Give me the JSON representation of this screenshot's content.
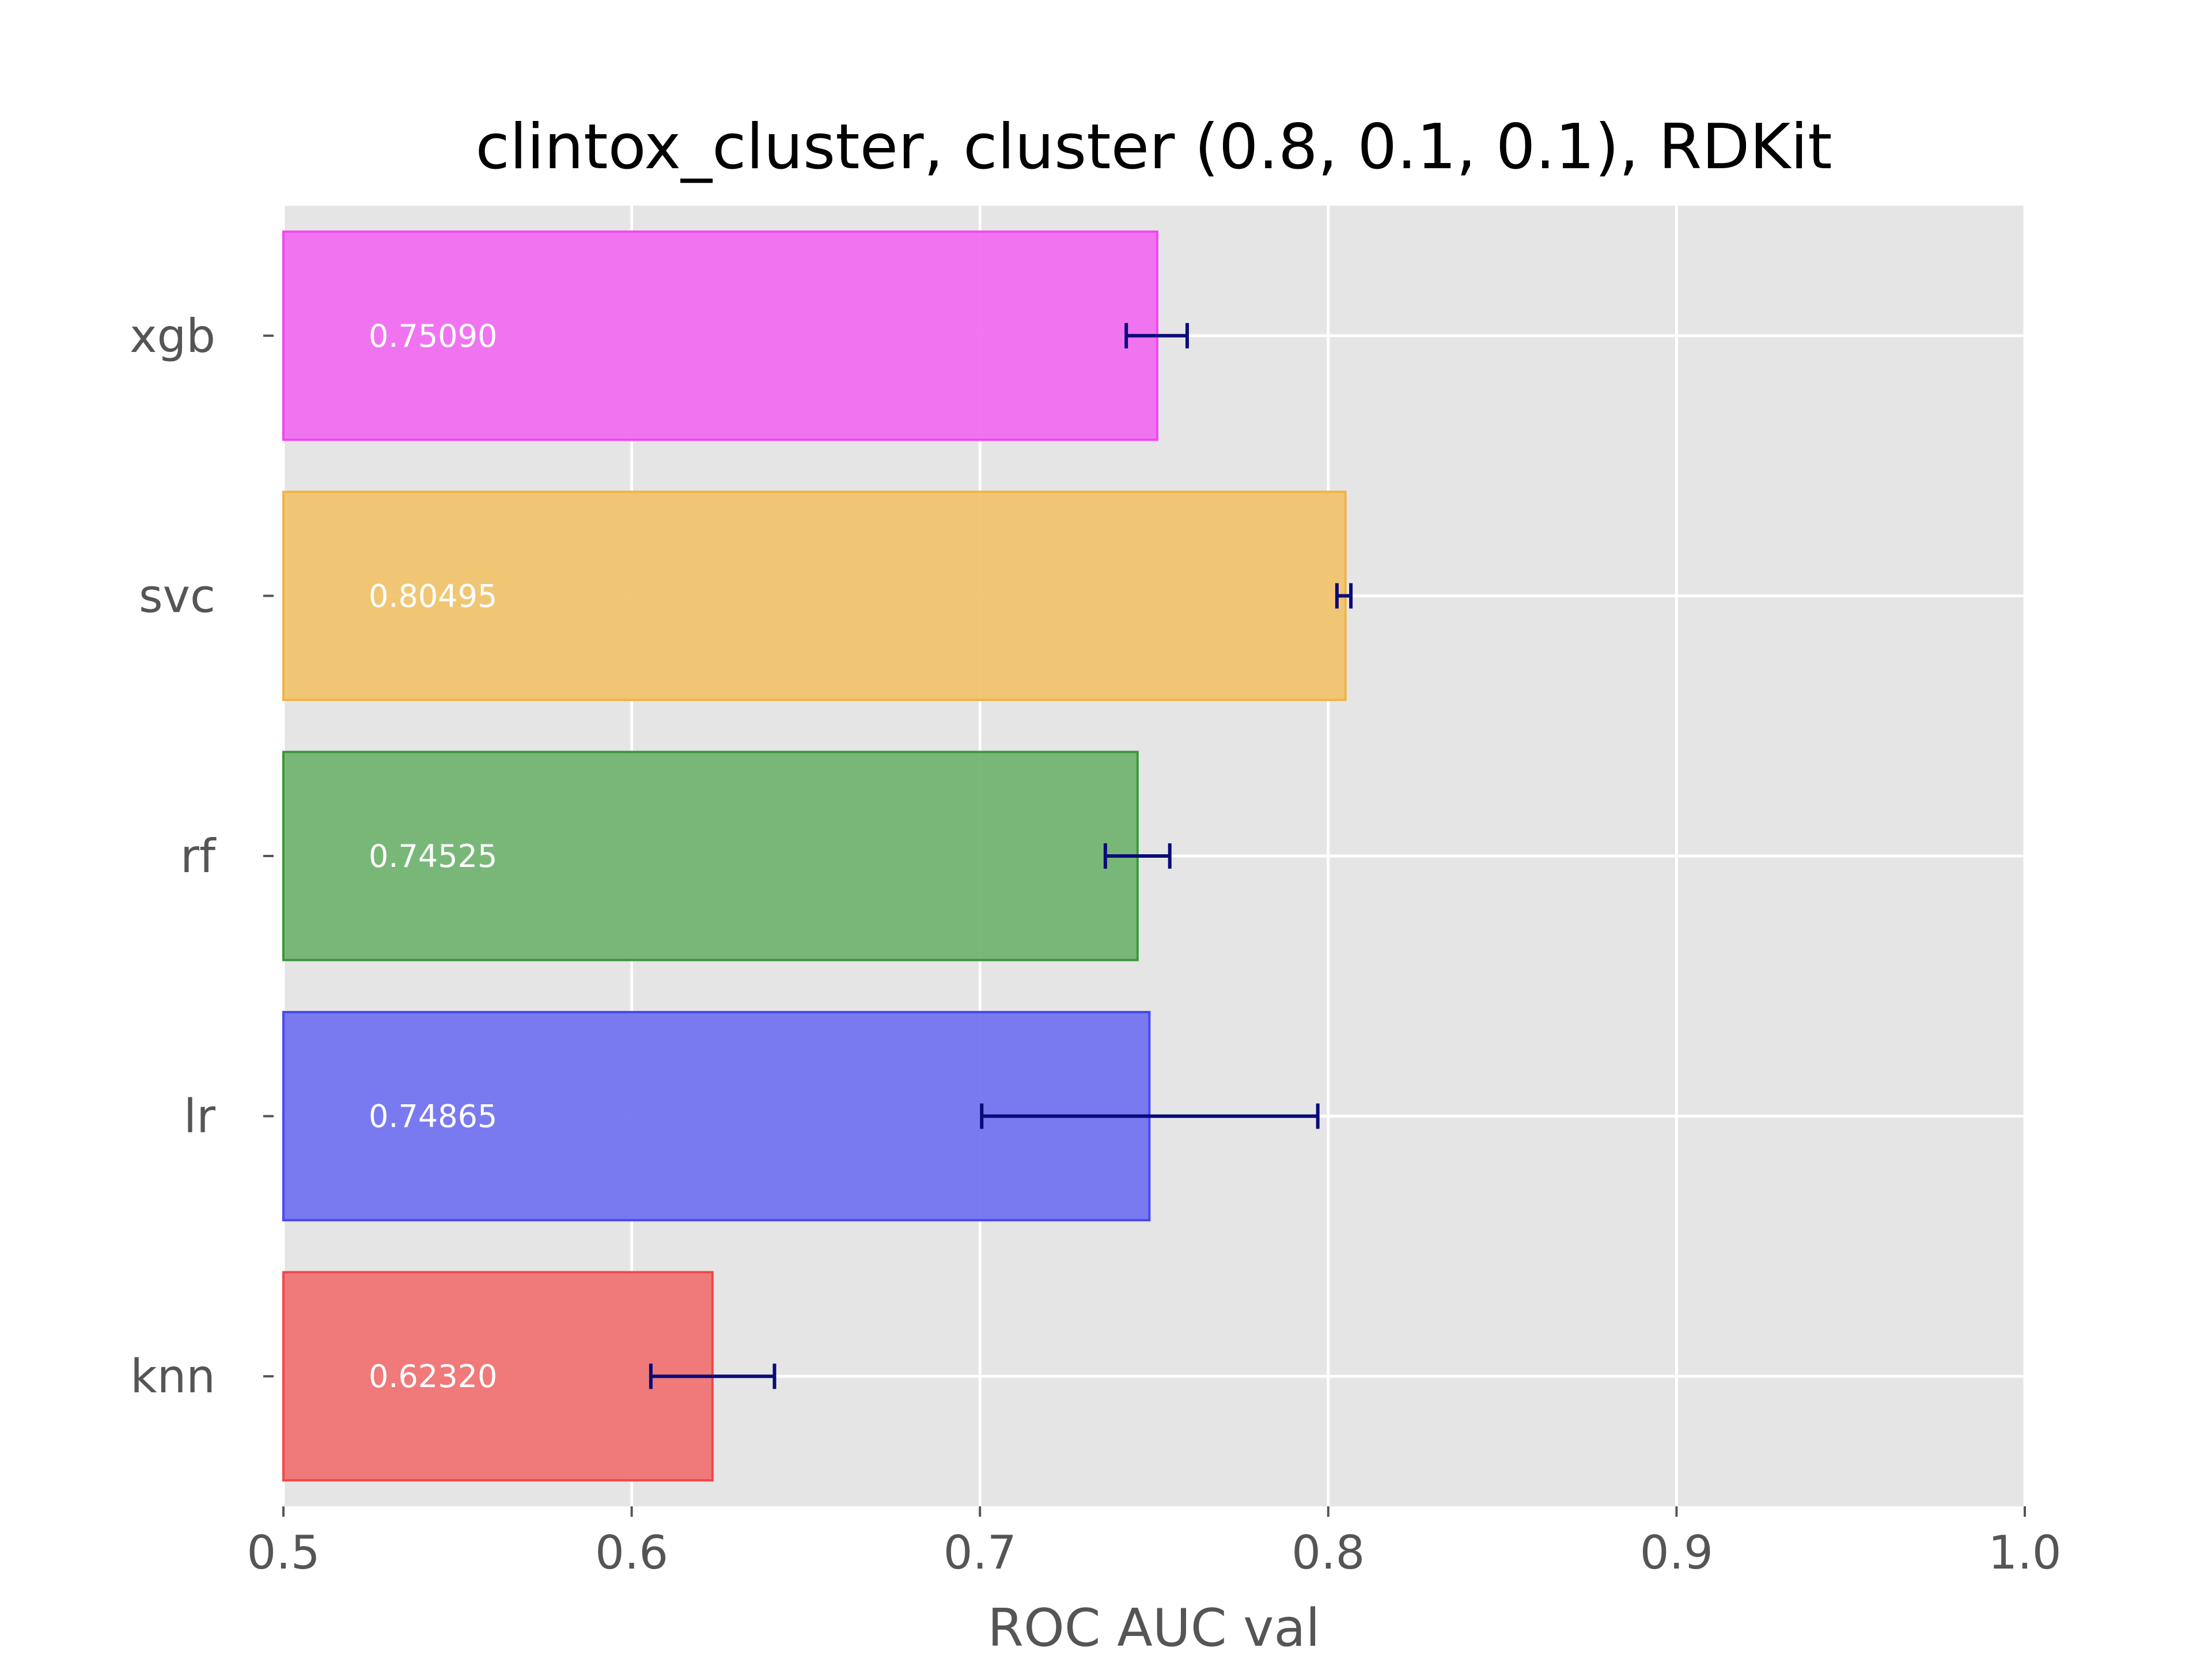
{
  "chart_data": {
    "type": "bar",
    "orientation": "horizontal",
    "title": "clintox_cluster, cluster (0.8, 0.1, 0.1), RDKit",
    "xlabel": "ROC AUC val",
    "ylabel": "",
    "xlim": [
      0.5,
      1.0
    ],
    "xticks": [
      "0.5",
      "0.6",
      "0.7",
      "0.8",
      "0.9",
      "1.0"
    ],
    "grid": true,
    "legend": "none",
    "categories": [
      "xgb",
      "svc",
      "rf",
      "lr",
      "knn"
    ],
    "values": [
      0.7509,
      0.80495,
      0.74525,
      0.74865,
      0.6232
    ],
    "value_labels": [
      "0.75090",
      "0.80495",
      "0.74525",
      "0.74865",
      "0.62320"
    ],
    "error_low": [
      0.742,
      0.8025,
      0.736,
      0.7005,
      0.6055
    ],
    "error_high": [
      0.7595,
      0.8065,
      0.7545,
      0.797,
      0.641
    ],
    "colors": [
      "#f06ef0",
      "#f0c46e",
      "#73b473",
      "#7373f0",
      "#f07373"
    ],
    "edge_colors": [
      "#f048f0",
      "#f0b448",
      "#3c963c",
      "#4848f0",
      "#f04848"
    ],
    "error_color": "#0a0a78",
    "background_color": "#e5e5e5",
    "grid_color": "#ffffff"
  }
}
